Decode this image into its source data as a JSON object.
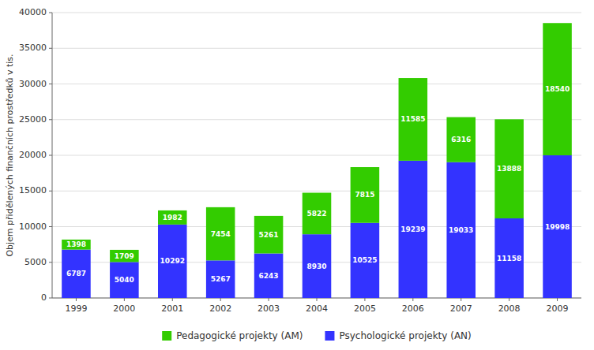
{
  "chart_data": {
    "type": "bar",
    "stacked": true,
    "categories": [
      "1999",
      "2000",
      "2001",
      "2002",
      "2003",
      "2004",
      "2005",
      "2006",
      "2007",
      "2008",
      "2009"
    ],
    "series": [
      {
        "name": "Psychologické projekty (AN)",
        "color": "#3333ff",
        "values": [
          6787,
          5040,
          10292,
          5267,
          6243,
          8930,
          10525,
          19239,
          19033,
          11158,
          19998
        ]
      },
      {
        "name": "Pedagogické projekty (AM)",
        "color": "#33cc00",
        "values": [
          1398,
          1709,
          1982,
          7454,
          5261,
          5822,
          7815,
          11585,
          6316,
          13888,
          18540
        ]
      }
    ],
    "ylabel": "Objem přidělených finančních prostředků v tis.",
    "ylim": [
      0,
      40000
    ],
    "yticks": [
      0,
      5000,
      10000,
      15000,
      20000,
      25000,
      30000,
      35000,
      40000
    ],
    "grid": true,
    "data_labels": true,
    "legend": "bottom"
  }
}
